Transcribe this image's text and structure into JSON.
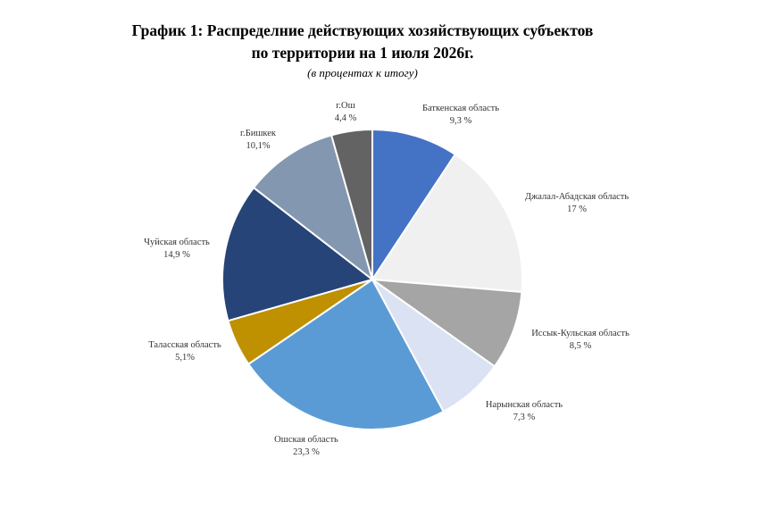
{
  "chart_data": {
    "type": "pie",
    "title_line1": "График 1: Распределние действующих хозяйствующих субъектов",
    "title_line2": "по территории на 1 июля 2026г.",
    "subtitle": "(в процентах к итогу)",
    "slices": [
      {
        "name": "Баткенская область",
        "value": 9.3,
        "value_label": "9,3 %",
        "color": "#4472C4"
      },
      {
        "name": "Джалал-Абадская область",
        "value": 17,
        "value_label": "17 %",
        "color": "#F0F0F0"
      },
      {
        "name": "Иссык-Кульская область",
        "value": 8.5,
        "value_label": "8,5 %",
        "color": "#A5A5A5"
      },
      {
        "name": "Нарынская область",
        "value": 7.3,
        "value_label": "7,3 %",
        "color": "#DAE2F3"
      },
      {
        "name": "Ошская область",
        "value": 23.3,
        "value_label": "23,3 %",
        "color": "#5B9BD5"
      },
      {
        "name": "Таласская область",
        "value": 5.1,
        "value_label": "5,1%",
        "color": "#BF9000"
      },
      {
        "name": "Чуйская область",
        "value": 14.9,
        "value_label": "14,9 %",
        "color": "#264478"
      },
      {
        "name": "г.Бишкек",
        "value": 10.1,
        "value_label": "10,1%",
        "color": "#8497B0"
      },
      {
        "name": "г.Ош",
        "value": 4.4,
        "value_label": "4,4 %",
        "color": "#636363"
      }
    ]
  }
}
